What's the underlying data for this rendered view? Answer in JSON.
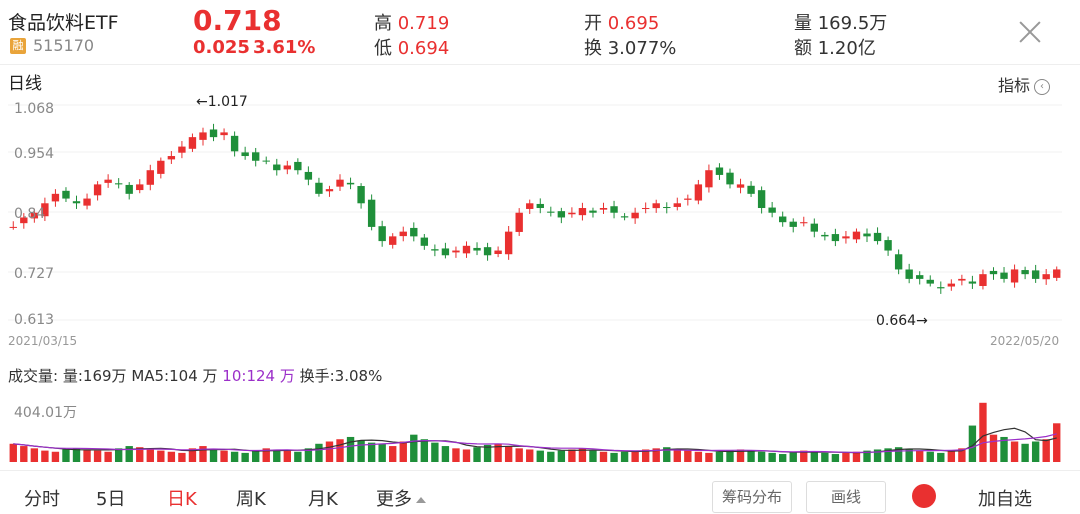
{
  "header": {
    "name": "食品饮料ETF",
    "badge": "融",
    "code": "515170",
    "price": "0.718",
    "change": "0.025",
    "change_pct": "3.61%",
    "high_label": "高",
    "high": "0.719",
    "low_label": "低",
    "low": "0.694",
    "open_label": "开",
    "open": "0.695",
    "turnover_label": "换",
    "turnover": "3.077%",
    "volume_label": "量",
    "volume": "169.5万",
    "amount_label": "额",
    "amount": "1.20亿"
  },
  "kchart": {
    "title": "日线",
    "indicator_label": "指标",
    "indicator_icon": "chevron-left-circle-icon",
    "y_ticks": [
      "1.068",
      "0.954",
      "0.84",
      "0.727",
      "0.613"
    ],
    "max_annotation": "←1.017",
    "min_annotation": "0.664→",
    "start_date": "2021/03/15",
    "end_date": "2022/05/20",
    "up_color": "#e93030",
    "down_color": "#1f8f3a"
  },
  "volume_panel": {
    "header_label": "成交量:",
    "vol_text": "量:169万",
    "ma5_text": "MA5:104 万",
    "ma10_text": "10:124 万",
    "turnover_text": "换手:3.08%",
    "y_tick": "404.01万",
    "ma5_color": "#333333",
    "ma10_color": "#9b2fc9"
  },
  "chart_data": {
    "type": "candlestick",
    "ylim": [
      0.613,
      1.068
    ],
    "close_series_sampled": [
      0.81,
      0.83,
      0.84,
      0.86,
      0.88,
      0.87,
      0.86,
      0.87,
      0.9,
      0.91,
      0.9,
      0.88,
      0.9,
      0.93,
      0.95,
      0.96,
      0.98,
      1.0,
      1.01,
      1.0,
      1.01,
      0.97,
      0.96,
      0.95,
      0.95,
      0.93,
      0.94,
      0.93,
      0.91,
      0.88,
      0.89,
      0.91,
      0.9,
      0.86,
      0.81,
      0.78,
      0.79,
      0.8,
      0.79,
      0.77,
      0.76,
      0.75,
      0.76,
      0.77,
      0.76,
      0.75,
      0.76,
      0.8,
      0.84,
      0.86,
      0.85,
      0.84,
      0.83,
      0.84,
      0.85,
      0.84,
      0.85,
      0.84,
      0.83,
      0.84,
      0.85,
      0.86,
      0.85,
      0.86,
      0.87,
      0.9,
      0.93,
      0.92,
      0.9,
      0.9,
      0.88,
      0.85,
      0.84,
      0.82,
      0.81,
      0.82,
      0.8,
      0.79,
      0.78,
      0.79,
      0.8,
      0.79,
      0.78,
      0.76,
      0.72,
      0.7,
      0.7,
      0.69,
      0.68,
      0.69,
      0.7,
      0.69,
      0.71,
      0.71,
      0.7,
      0.72,
      0.71,
      0.7,
      0.71,
      0.72
    ],
    "volume_series_wan_sampled": [
      80,
      70,
      60,
      50,
      45,
      55,
      60,
      55,
      50,
      45,
      60,
      70,
      65,
      55,
      50,
      45,
      40,
      60,
      70,
      55,
      50,
      45,
      40,
      50,
      60,
      55,
      50,
      45,
      60,
      80,
      90,
      100,
      110,
      95,
      85,
      80,
      70,
      90,
      120,
      100,
      85,
      70,
      60,
      55,
      65,
      75,
      80,
      70,
      60,
      55,
      50,
      45,
      50,
      55,
      60,
      50,
      45,
      40,
      45,
      50,
      55,
      60,
      65,
      55,
      50,
      45,
      40,
      45,
      50,
      55,
      50,
      45,
      40,
      35,
      45,
      50,
      45,
      40,
      35,
      40,
      45,
      50,
      55,
      60,
      65,
      55,
      50,
      45,
      40,
      50,
      60,
      160,
      260,
      120,
      110,
      90,
      80,
      90,
      100,
      170
    ]
  },
  "toolbar": {
    "tabs": [
      "分时",
      "5日",
      "日K",
      "周K",
      "月K",
      "更多"
    ],
    "active_tab": "日K",
    "chip_dist": "筹码分布",
    "draw": "画线",
    "add": "加自选"
  }
}
